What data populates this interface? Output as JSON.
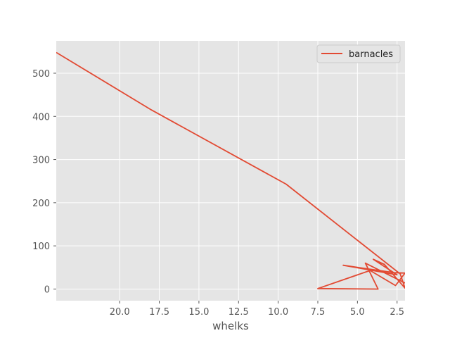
{
  "chart_data": {
    "type": "line",
    "title": "",
    "xlabel": "whelks",
    "ylabel": "",
    "x_inverted": true,
    "xlim": [
      24.0,
      2.0
    ],
    "ylim": [
      -27,
      575
    ],
    "x_ticks": [
      20.0,
      17.5,
      15.0,
      12.5,
      10.0,
      7.5,
      5.0,
      2.5
    ],
    "x_tick_labels": [
      "20.0",
      "17.5",
      "15.0",
      "12.5",
      "10.0",
      "7.5",
      "5.0",
      "2.5"
    ],
    "y_ticks": [
      0,
      100,
      200,
      300,
      400,
      500
    ],
    "y_tick_labels": [
      "0",
      "100",
      "200",
      "300",
      "400",
      "500"
    ],
    "grid": true,
    "legend_position": "upper right",
    "series": [
      {
        "name": "barnacles",
        "color": "#e24a33",
        "x": [
          24.0,
          18.0,
          9.5,
          2.3,
          2.0,
          3.3,
          4.0,
          2.5,
          5.9,
          2.7,
          2.0,
          2.6,
          4.2,
          7.5,
          3.7,
          4.5,
          2.0
        ],
        "y": [
          548,
          415,
          243,
          35,
          2,
          57,
          69,
          33,
          55,
          38,
          37,
          8,
          43,
          1,
          0,
          60,
          14
        ]
      }
    ]
  }
}
